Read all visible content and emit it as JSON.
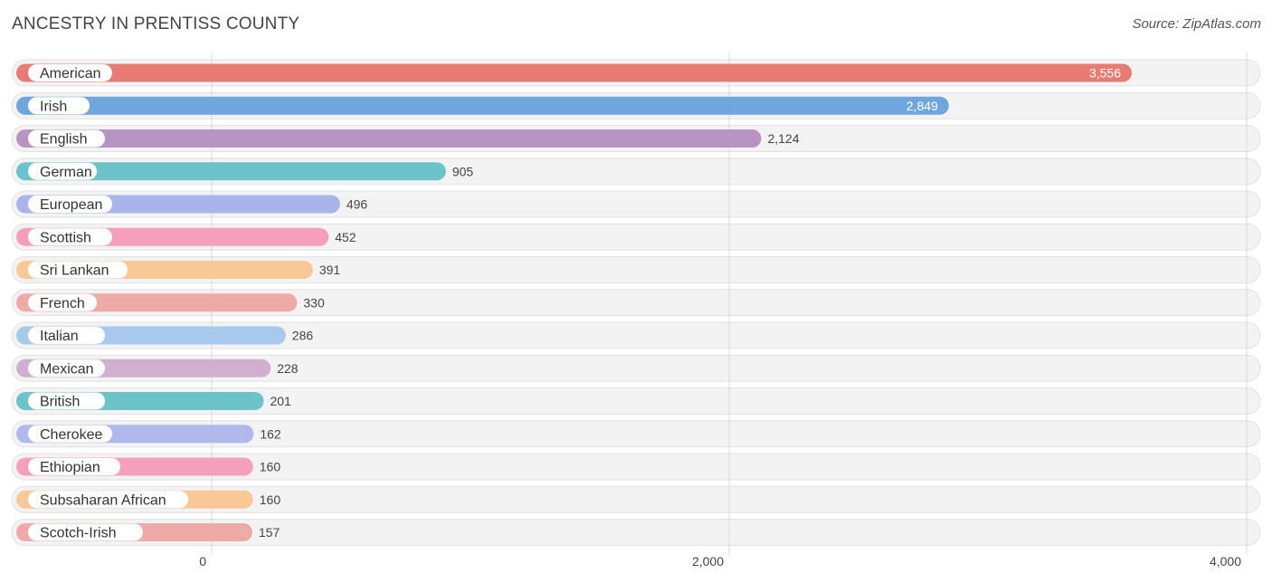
{
  "title": "ANCESTRY IN PRENTISS COUNTY",
  "source": "Source: ZipAtlas.com",
  "chart_data": {
    "type": "bar",
    "orientation": "horizontal",
    "title": "ANCESTRY IN PRENTISS COUNTY",
    "categories": [
      "American",
      "Irish",
      "English",
      "German",
      "European",
      "Scottish",
      "Sri Lankan",
      "French",
      "Italian",
      "Mexican",
      "British",
      "Cherokee",
      "Ethiopian",
      "Subsaharan African",
      "Scotch-Irish"
    ],
    "values": [
      3556,
      2849,
      2124,
      905,
      496,
      452,
      391,
      330,
      286,
      228,
      201,
      162,
      160,
      160,
      157
    ],
    "value_labels": [
      "3,556",
      "2,849",
      "2,124",
      "905",
      "496",
      "452",
      "391",
      "330",
      "286",
      "228",
      "201",
      "162",
      "160",
      "160",
      "157"
    ],
    "colors": [
      "#e87b74",
      "#6fa7dd",
      "#b894c3",
      "#6cc3c9",
      "#a9b4ea",
      "#f59fbd",
      "#f9c897",
      "#eeaaa6",
      "#a8c8ec",
      "#cfb0d0",
      "#6cc3c9",
      "#b0b8ec",
      "#f4a0bd",
      "#f9c897",
      "#eeaaa6"
    ],
    "x_ticks": [
      0,
      2000,
      4000
    ],
    "x_tick_labels": [
      "0",
      "2,000",
      "4,000"
    ],
    "xlim": [
      0,
      4000
    ],
    "grid": true,
    "legend": "none"
  }
}
